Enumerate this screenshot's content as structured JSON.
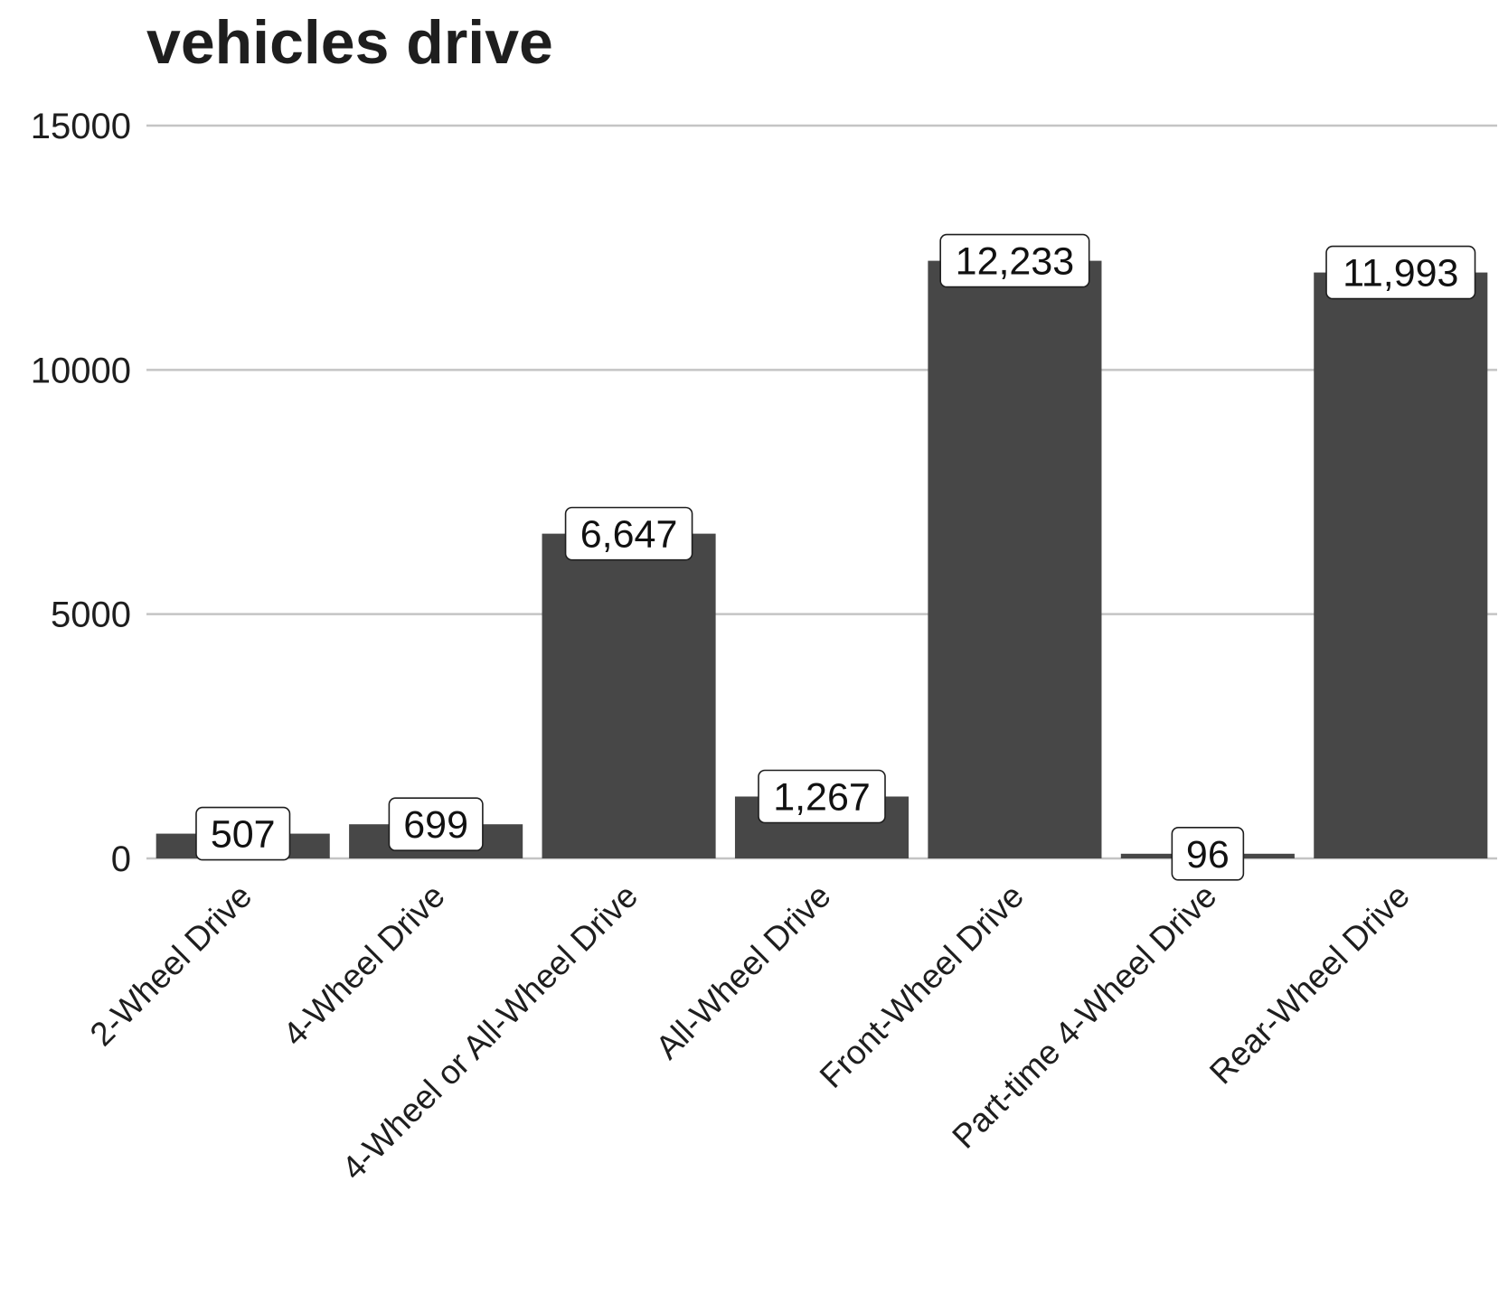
{
  "chart_data": {
    "type": "bar",
    "title": "vehicles drive",
    "xlabel": "",
    "ylabel": "",
    "categories": [
      "2-Wheel Drive",
      "4-Wheel Drive",
      "4-Wheel or All-Wheel Drive",
      "All-Wheel Drive",
      "Front-Wheel Drive",
      "Part-time 4-Wheel Drive",
      "Rear-Wheel Drive"
    ],
    "values": [
      507,
      699,
      6647,
      1267,
      12233,
      96,
      11993
    ],
    "data_labels": [
      "507",
      "699",
      "6,647",
      "1,267",
      "12,233",
      "96",
      "11,993"
    ],
    "ylim": [
      0,
      15000
    ],
    "yticks": [
      0,
      5000,
      10000,
      15000
    ],
    "ytick_labels": [
      "0",
      "5000",
      "10000",
      "15000"
    ],
    "grid": "horizontal",
    "legend": "none",
    "bar_color": "#474747",
    "grid_color": "#c4c4c4",
    "text_color": "#1e1e1e"
  }
}
